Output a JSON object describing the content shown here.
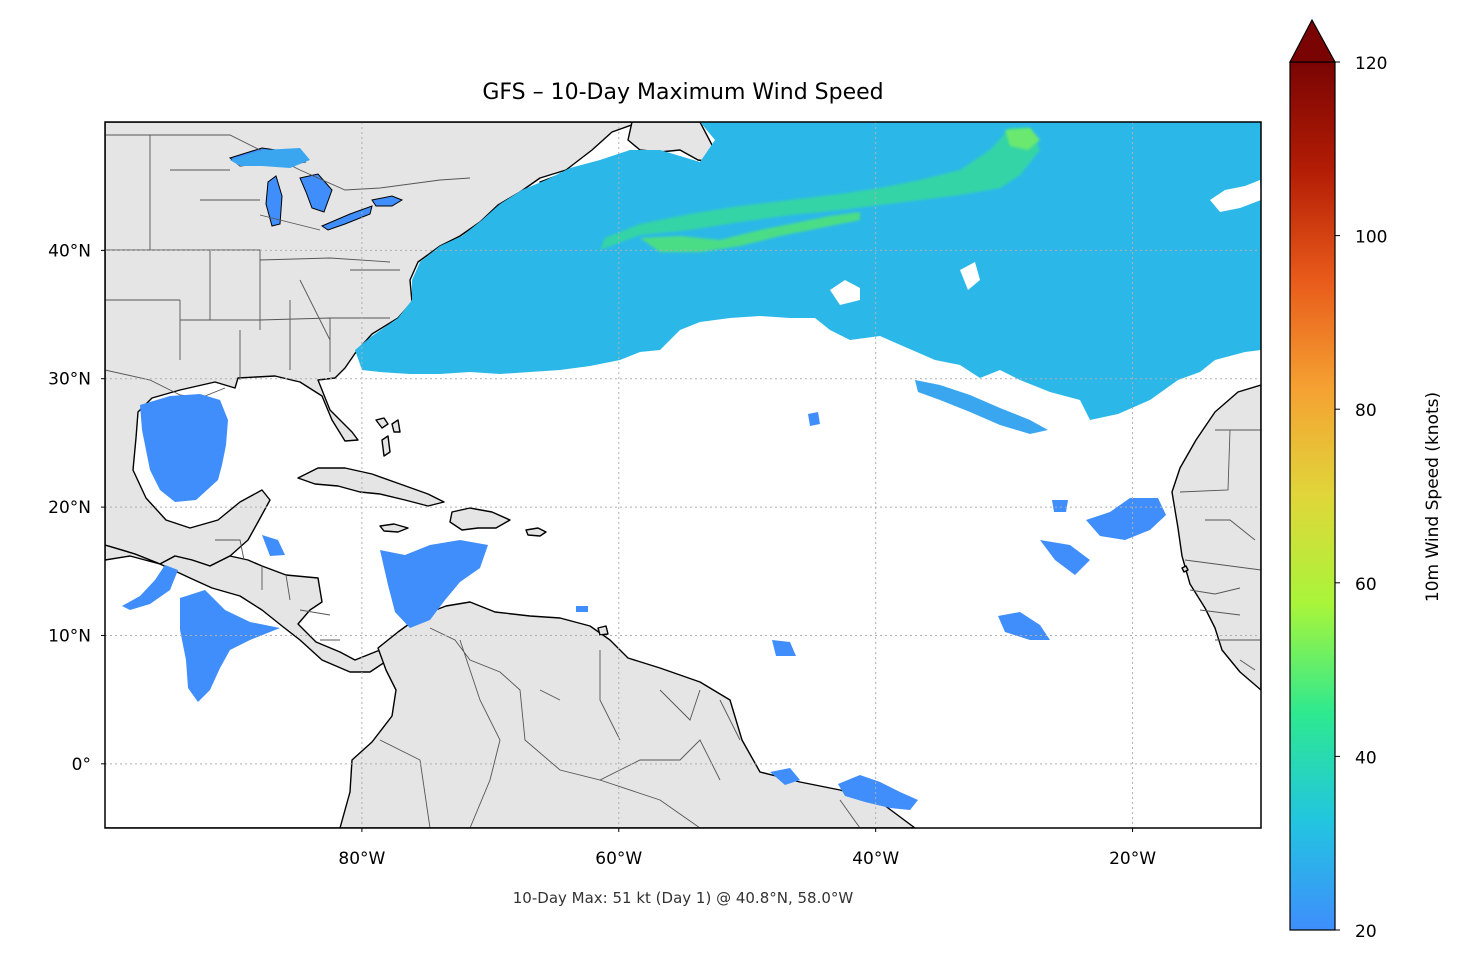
{
  "title": "GFS – 10-Day Maximum Wind Speed",
  "footer": "10-Day Max: 51 kt (Day 1) @ 40.8°N, 58.0°W",
  "map": {
    "extent": {
      "lon_min": -100,
      "lon_max": -10,
      "lat_min": -5,
      "lat_max": 50
    },
    "x_ticks": [
      {
        "lon": -80,
        "label": "80°W"
      },
      {
        "lon": -60,
        "label": "60°W"
      },
      {
        "lon": -40,
        "label": "40°W"
      },
      {
        "lon": -20,
        "label": "20°W"
      }
    ],
    "y_ticks": [
      {
        "lat": 40,
        "label": "40°N"
      },
      {
        "lat": 30,
        "label": "30°N"
      },
      {
        "lat": 20,
        "label": "20°N"
      },
      {
        "lat": 10,
        "label": "10°N"
      },
      {
        "lat": 0,
        "label": "0°"
      }
    ],
    "gridlines": true,
    "land_color": "#e5e5e5",
    "ocean_color": "#ffffff",
    "coastline_color": "#000000",
    "border_color": "#555555"
  },
  "colorbar": {
    "label": "10m Wind Speed (knots)",
    "min": 20,
    "max": 120,
    "extend": "max",
    "ticks": [
      {
        "value": 20,
        "label": "20"
      },
      {
        "value": 40,
        "label": "40"
      },
      {
        "value": 60,
        "label": "60"
      },
      {
        "value": 80,
        "label": "80"
      },
      {
        "value": 100,
        "label": "100"
      },
      {
        "value": 120,
        "label": "120"
      }
    ],
    "colors": [
      "#3f8efc",
      "#22c5e0",
      "#2ee98f",
      "#a8f53a",
      "#e0d63a",
      "#f5a132",
      "#e85a1a",
      "#b31d05",
      "#7a0403"
    ]
  },
  "wind_regions": [
    {
      "name": "north-atlantic-jet",
      "speed_kt": 32
    },
    {
      "name": "peak-wind-maximum",
      "speed_kt": 51
    },
    {
      "name": "gulf-of-mexico",
      "speed_kt": 24
    },
    {
      "name": "caribbean",
      "speed_kt": 22
    },
    {
      "name": "eastern-pacific",
      "speed_kt": 22
    },
    {
      "name": "eastern-tropical-atlantic",
      "speed_kt": 22
    },
    {
      "name": "equatorial-atlantic",
      "speed_kt": 22
    }
  ]
}
